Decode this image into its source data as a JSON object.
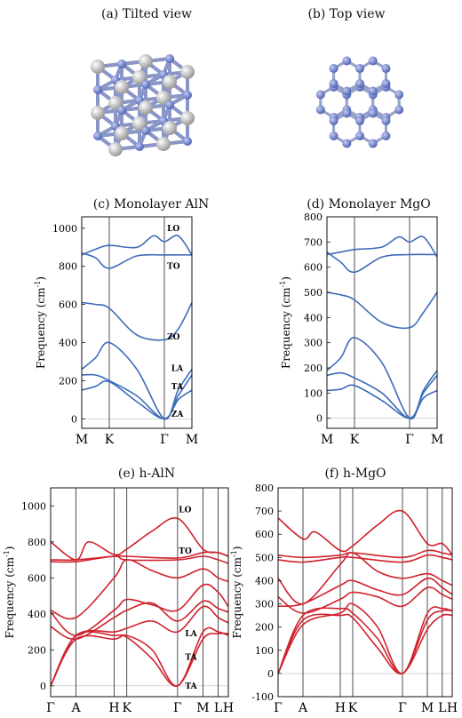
{
  "panels": {
    "a": {
      "title": "(a) Tilted view"
    },
    "b": {
      "title": "(b) Top view"
    }
  },
  "colors": {
    "blue_band": "#3d6bb8",
    "red_band": "#d0222d",
    "atom_n": "#7f93d6",
    "atom_host": "#d7d7d7"
  },
  "chart_data": [
    {
      "id": "c",
      "type": "line",
      "title": "(c) Monolayer AlN",
      "ylabel": "Frequency (cm-1)",
      "ylabel_main": "Frequency (cm",
      "ylabel_sup": "-1",
      "ylabel_close": ")",
      "ylim": [
        -50,
        1060
      ],
      "yticks": [
        0,
        200,
        400,
        600,
        800,
        1000
      ],
      "kpath": [
        "M",
        "K",
        "Γ",
        "M"
      ],
      "kpos": [
        0,
        1,
        3,
        4
      ],
      "mode_labels": [
        {
          "text": "LO",
          "k": 3.1,
          "f": 1000
        },
        {
          "text": "TO",
          "k": 3.1,
          "f": 800
        },
        {
          "text": "ZO",
          "k": 3.1,
          "f": 430
        },
        {
          "text": "LA",
          "k": 3.25,
          "f": 265
        },
        {
          "text": "TA",
          "k": 3.25,
          "f": 170
        },
        {
          "text": "ZA",
          "k": 3.25,
          "f": 25
        }
      ],
      "color": "#3d6bb8",
      "series": [
        {
          "k": [
            0,
            0.5,
            1,
            2,
            2.6,
            3,
            3.5,
            4
          ],
          "f": [
            860,
            890,
            910,
            900,
            960,
            930,
            960,
            860
          ]
        },
        {
          "k": [
            0,
            0.5,
            1,
            2,
            3,
            4
          ],
          "f": [
            870,
            845,
            790,
            855,
            860,
            860
          ]
        },
        {
          "k": [
            0,
            0.5,
            1,
            2,
            3,
            3.5,
            4
          ],
          "f": [
            610,
            600,
            580,
            440,
            415,
            470,
            610
          ]
        },
        {
          "k": [
            0,
            0.5,
            1,
            2,
            3,
            3.5,
            4
          ],
          "f": [
            260,
            320,
            400,
            260,
            0,
            150,
            260
          ]
        },
        {
          "k": [
            0,
            0.5,
            1,
            2,
            3,
            3.5,
            4
          ],
          "f": [
            230,
            230,
            200,
            120,
            0,
            120,
            230
          ]
        },
        {
          "k": [
            0,
            0.5,
            1,
            2,
            3,
            3.5,
            4
          ],
          "f": [
            150,
            170,
            195,
            90,
            0,
            100,
            150
          ]
        }
      ]
    },
    {
      "id": "d",
      "type": "line",
      "title": "(d) Monolayer MgO",
      "ylabel": "Frequency (cm-1)",
      "ylabel_main": "Frequency (cm",
      "ylabel_sup": "-1",
      "ylabel_close": ")",
      "ylim": [
        -40,
        800
      ],
      "yticks": [
        0,
        100,
        200,
        300,
        400,
        500,
        600,
        700,
        800
      ],
      "kpath": [
        "M",
        "K",
        "Γ",
        "M"
      ],
      "kpos": [
        0,
        1,
        3,
        4
      ],
      "mode_labels": [],
      "color": "#3d6bb8",
      "series": [
        {
          "k": [
            0,
            0.5,
            1,
            2,
            2.6,
            3,
            3.5,
            4
          ],
          "f": [
            650,
            660,
            670,
            680,
            720,
            700,
            720,
            640
          ]
        },
        {
          "k": [
            0,
            0.5,
            1,
            2,
            3,
            4
          ],
          "f": [
            660,
            620,
            580,
            640,
            650,
            650
          ]
        },
        {
          "k": [
            0,
            0.5,
            1,
            2,
            3,
            3.5,
            4
          ],
          "f": [
            500,
            490,
            470,
            380,
            360,
            420,
            500
          ]
        },
        {
          "k": [
            0,
            0.5,
            1,
            2,
            3,
            3.5,
            4
          ],
          "f": [
            190,
            240,
            320,
            220,
            0,
            110,
            190
          ]
        },
        {
          "k": [
            0,
            0.5,
            1,
            2,
            3,
            3.5,
            4
          ],
          "f": [
            170,
            180,
            160,
            100,
            0,
            100,
            170
          ]
        },
        {
          "k": [
            0,
            0.5,
            1,
            2,
            3,
            3.5,
            4
          ],
          "f": [
            110,
            115,
            130,
            70,
            0,
            80,
            110
          ]
        }
      ]
    },
    {
      "id": "e",
      "type": "line",
      "title": "(e) h-AlN",
      "ylabel": "Frequency (cm-1)",
      "ylabel_main": "Frequency (cm",
      "ylabel_sup": "-1",
      "ylabel_close": ")",
      "ylim": [
        -60,
        1100
      ],
      "yticks": [
        0,
        200,
        400,
        600,
        800,
        1000
      ],
      "kpath": [
        "Γ",
        "A",
        "H",
        "K",
        "Γ",
        "M",
        "L",
        "H"
      ],
      "kpos": [
        0,
        1,
        2.5,
        3,
        5,
        6,
        6.6,
        7
      ],
      "mode_labels": [
        {
          "text": "LO",
          "k": 5.05,
          "f": 980
        },
        {
          "text": "TO",
          "k": 5.05,
          "f": 750
        },
        {
          "text": "LA",
          "k": 5.3,
          "f": 290
        },
        {
          "text": "TA",
          "k": 5.3,
          "f": 160
        },
        {
          "text": "TA",
          "k": 5.3,
          "f": 0
        }
      ],
      "color": "#d0222d",
      "series": [
        {
          "k": [
            0,
            1,
            1.5,
            2.5,
            3,
            4,
            5,
            6,
            6.6,
            7
          ],
          "f": [
            800,
            700,
            800,
            730,
            760,
            860,
            930,
            760,
            740,
            720
          ]
        },
        {
          "k": [
            0,
            1,
            2.5,
            3,
            5,
            6,
            6.6,
            7
          ],
          "f": [
            700,
            700,
            720,
            720,
            710,
            740,
            740,
            720
          ]
        },
        {
          "k": [
            0,
            1,
            2.5,
            3,
            5,
            6,
            6.6,
            7
          ],
          "f": [
            690,
            690,
            720,
            700,
            700,
            720,
            700,
            680
          ]
        },
        {
          "k": [
            0,
            1,
            2.5,
            3,
            4,
            5,
            6,
            6.6,
            7
          ],
          "f": [
            420,
            380,
            600,
            700,
            640,
            600,
            650,
            600,
            580
          ]
        },
        {
          "k": [
            0,
            1,
            2.5,
            3,
            4,
            5,
            6,
            6.6,
            7
          ],
          "f": [
            410,
            280,
            420,
            480,
            450,
            420,
            560,
            520,
            440
          ]
        },
        {
          "k": [
            0,
            1,
            2.5,
            3,
            4,
            5,
            6,
            6.6,
            7
          ],
          "f": [
            330,
            260,
            380,
            420,
            460,
            360,
            470,
            430,
            410
          ]
        },
        {
          "k": [
            0,
            1,
            2.5,
            3,
            4,
            5,
            6,
            6.6,
            7
          ],
          "f": [
            0,
            280,
            300,
            320,
            360,
            300,
            440,
            380,
            350
          ]
        },
        {
          "k": [
            0,
            1,
            2.5,
            3,
            4,
            5,
            6,
            6.6,
            7
          ],
          "f": [
            0,
            260,
            260,
            280,
            200,
            0,
            300,
            300,
            280
          ]
        },
        {
          "k": [
            0,
            1,
            2.5,
            3,
            4,
            5,
            6,
            6.6,
            7
          ],
          "f": [
            0,
            280,
            280,
            270,
            150,
            0,
            260,
            290,
            290
          ]
        }
      ]
    },
    {
      "id": "f",
      "type": "line",
      "title": "(f) h-MgO",
      "ylabel": "Frequency (cm-1)",
      "ylabel_main": "Frequency (cm",
      "ylabel_sup": "-1",
      "ylabel_close": ")",
      "ylim": [
        -100,
        800
      ],
      "yticks": [
        -100,
        0,
        100,
        200,
        300,
        400,
        500,
        600,
        700,
        800
      ],
      "kpath": [
        "Γ",
        "A",
        "H",
        "K",
        "Γ",
        "M",
        "L",
        "H"
      ],
      "kpos": [
        0,
        1,
        2.5,
        3,
        5,
        6,
        6.6,
        7
      ],
      "mode_labels": [],
      "color": "#d0222d",
      "series": [
        {
          "k": [
            0,
            1,
            1.5,
            2.5,
            3,
            4,
            5,
            6,
            6.6,
            7
          ],
          "f": [
            670,
            580,
            610,
            530,
            550,
            640,
            700,
            560,
            560,
            510
          ]
        },
        {
          "k": [
            0,
            1,
            2.5,
            3,
            5,
            6,
            6.6,
            7
          ],
          "f": [
            510,
            500,
            510,
            520,
            500,
            530,
            520,
            510
          ]
        },
        {
          "k": [
            0,
            1,
            2.5,
            3,
            5,
            6,
            6.6,
            7
          ],
          "f": [
            490,
            480,
            500,
            500,
            480,
            510,
            500,
            490
          ]
        },
        {
          "k": [
            0,
            1,
            2.5,
            3,
            4,
            5,
            6,
            6.6,
            7
          ],
          "f": [
            410,
            300,
            470,
            520,
            440,
            410,
            430,
            400,
            380
          ]
        },
        {
          "k": [
            0,
            1,
            2.5,
            3,
            4,
            5,
            6,
            6.6,
            7
          ],
          "f": [
            290,
            300,
            380,
            400,
            360,
            340,
            410,
            370,
            340
          ]
        },
        {
          "k": [
            0,
            1,
            2.5,
            3,
            4,
            5,
            6,
            6.6,
            7
          ],
          "f": [
            330,
            260,
            320,
            350,
            330,
            290,
            370,
            340,
            320
          ]
        },
        {
          "k": [
            0,
            1,
            2.5,
            3,
            4,
            5,
            6,
            6.6,
            7
          ],
          "f": [
            0,
            210,
            260,
            300,
            200,
            0,
            260,
            280,
            270
          ]
        },
        {
          "k": [
            0,
            1,
            2.5,
            3,
            4,
            5,
            6,
            6.6,
            7
          ],
          "f": [
            0,
            230,
            250,
            240,
            110,
            0,
            190,
            250,
            250
          ]
        },
        {
          "k": [
            0,
            1,
            2.5,
            3,
            4,
            5,
            6,
            6.6,
            7
          ],
          "f": [
            0,
            250,
            280,
            260,
            150,
            0,
            230,
            270,
            270
          ]
        }
      ]
    }
  ]
}
